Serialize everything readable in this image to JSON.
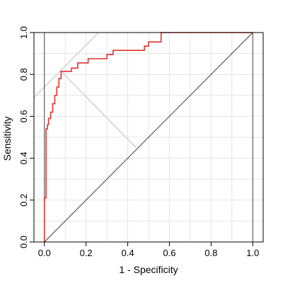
{
  "chart_data": {
    "type": "line",
    "title": "",
    "xlabel": "1 - Specificity",
    "ylabel": "Sensitivity",
    "xlim": [
      -0.05,
      1.05
    ],
    "ylim": [
      0.0,
      1.0
    ],
    "xticks": [
      "0.0",
      "0.2",
      "0.4",
      "0.6",
      "0.8",
      "1.0"
    ],
    "yticks": [
      "0.0",
      "0.2",
      "0.4",
      "0.6",
      "0.8",
      "1.0"
    ],
    "grid": true,
    "legend": "none",
    "colors": {
      "roc": "#e0312b",
      "diagonal": "#3c3c3c",
      "grid": "#e4e4e4",
      "helper": "#c8c8c8",
      "frame": "#000000"
    },
    "series": [
      {
        "x": [
          0.0,
          0.0,
          0.008,
          0.008,
          0.015,
          0.015,
          0.02,
          0.02,
          0.03,
          0.03,
          0.04,
          0.04,
          0.05,
          0.05,
          0.06,
          0.06,
          0.07,
          0.07,
          0.08,
          0.08,
          0.13,
          0.13,
          0.16,
          0.16,
          0.21,
          0.21,
          0.3,
          0.3,
          0.33,
          0.33,
          0.48,
          0.48,
          0.5,
          0.5,
          0.56,
          0.56,
          1.0
        ],
        "y": [
          0.0,
          0.21,
          0.21,
          0.54,
          0.54,
          0.56,
          0.56,
          0.59,
          0.59,
          0.62,
          0.62,
          0.66,
          0.66,
          0.7,
          0.7,
          0.74,
          0.74,
          0.78,
          0.78,
          0.815,
          0.815,
          0.83,
          0.83,
          0.855,
          0.855,
          0.875,
          0.875,
          0.895,
          0.895,
          0.915,
          0.915,
          0.935,
          0.935,
          0.955,
          0.955,
          1.0,
          1.0
        ]
      }
    ],
    "reference_line": {
      "x": [
        0,
        1
      ],
      "y": [
        0,
        1
      ]
    },
    "optimal_point": {
      "x": 0.08,
      "y": 0.815
    },
    "helper_lines": [
      {
        "x": [
          -0.05,
          0.26
        ],
        "y": [
          0.69,
          1.0
        ]
      },
      {
        "x": [
          0.08,
          0.44
        ],
        "y": [
          0.815,
          0.45
        ]
      }
    ]
  }
}
